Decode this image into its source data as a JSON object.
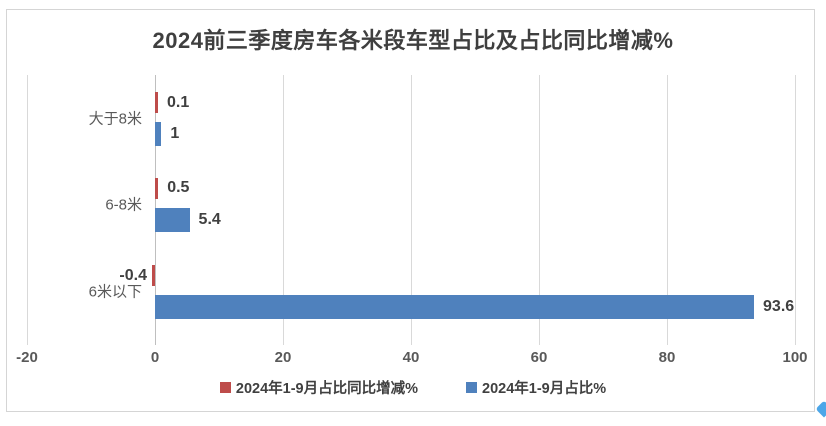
{
  "chart_data": {
    "type": "bar",
    "orientation": "horizontal",
    "title": "2024前三季度房车各米段车型占比及占比同比增减%",
    "categories": [
      "大于8米",
      "6-8米",
      "6米以下"
    ],
    "series": [
      {
        "name": "2024年1-9月占比同比增减%",
        "color": "#be4c4a",
        "values": [
          0.1,
          0.5,
          -0.4
        ],
        "labels": [
          "0.1",
          "0.5",
          "-0.4"
        ]
      },
      {
        "name": "2024年1-9月占比%",
        "color": "#4f81bd",
        "values": [
          1,
          5.4,
          93.6
        ],
        "labels": [
          "1",
          "5.4",
          "93.6"
        ]
      }
    ],
    "x_axis": {
      "min": -20,
      "max": 100,
      "tick_interval": 20,
      "ticks": [
        -20,
        0,
        20,
        40,
        60,
        80,
        100
      ],
      "tick_labels": [
        "-20",
        "0",
        "20",
        "40",
        "60",
        "80",
        "100"
      ]
    },
    "grid": true,
    "data_labels": true,
    "legend_position": "bottom"
  },
  "colors": {
    "series_change": "#be4c4a",
    "series_share": "#4f81bd",
    "gridline": "#d9d9d9",
    "axis_line": "#bfbfbf",
    "title_text": "#3f3f3f",
    "tick_text": "#595959",
    "value_label_text": "#404040",
    "frame_border": "#d5d5d5",
    "corner_handle": "#4ca6e8"
  }
}
